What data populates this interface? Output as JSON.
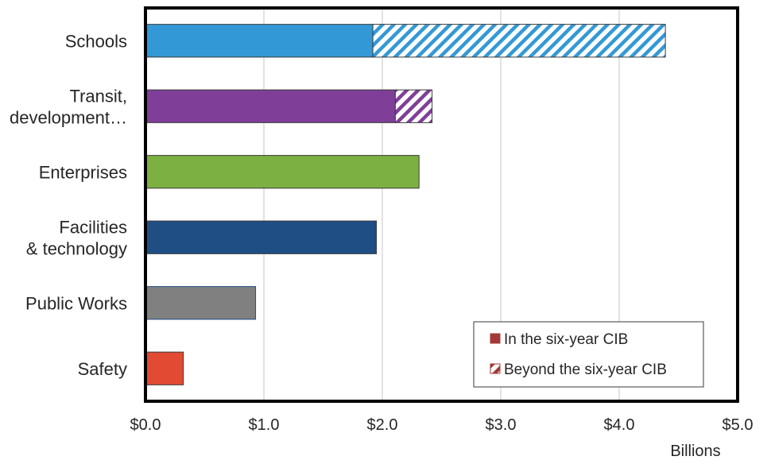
{
  "chart_data": {
    "type": "bar",
    "orientation": "horizontal",
    "stacked": true,
    "categories": [
      {
        "label_lines": [
          "Schools"
        ],
        "color": "#3399D6"
      },
      {
        "label_lines": [
          "Transit,",
          "development…"
        ],
        "color": "#7F3F98"
      },
      {
        "label_lines": [
          "Enterprises"
        ],
        "color": "#7CB042"
      },
      {
        "label_lines": [
          "Facilities",
          "& technology"
        ],
        "color": "#1F4E85"
      },
      {
        "label_lines": [
          "Public Works"
        ],
        "color": "#808080"
      },
      {
        "label_lines": [
          "Safety"
        ],
        "color": "#E24A33"
      }
    ],
    "series": [
      {
        "name": "In the six-year CIB",
        "pattern": "solid",
        "values": [
          1.92,
          2.11,
          2.31,
          1.95,
          0.93,
          0.32
        ]
      },
      {
        "name": "Beyond the six-year CIB",
        "pattern": "hatched",
        "values": [
          2.47,
          0.31,
          0,
          0,
          0,
          0
        ]
      }
    ],
    "xlim": [
      0,
      5
    ],
    "x_ticks": [
      0,
      1,
      2,
      3,
      4,
      5
    ],
    "x_tick_labels": [
      "$0.0",
      "$1.0",
      "$2.0",
      "$3.0",
      "$4.0",
      "$5.0"
    ],
    "xlabel": "Billions",
    "grid": "vertical",
    "legend": {
      "position": "bottom-right",
      "entries": [
        {
          "label": "In the six-year CIB",
          "swatch": "solid",
          "color": "#A33A3A"
        },
        {
          "label": "Beyond the six-year CIB",
          "swatch": "hatched",
          "color": "#A33A3A"
        }
      ]
    }
  }
}
